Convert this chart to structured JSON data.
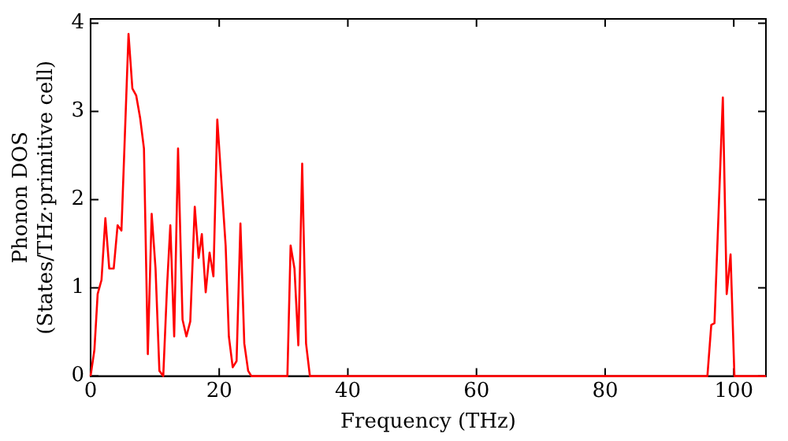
{
  "chart_data": {
    "type": "line",
    "xlabel": "Frequency (THz)",
    "ylabel": "Phonon DOS\n(States/THz·primitive cell)",
    "xlim": [
      0,
      105
    ],
    "ylim": [
      0,
      4.05
    ],
    "xticks": [
      0,
      20,
      40,
      60,
      80,
      100
    ],
    "yticks": [
      0,
      1,
      2,
      3,
      4
    ],
    "grid": false,
    "legend": false,
    "marker": "none",
    "line_style": "solid",
    "series": [
      {
        "color": "#ff0000",
        "x": [
          0,
          0.6,
          1.1,
          1.7,
          2.3,
          2.9,
          3.6,
          4.2,
          4.8,
          5.9,
          6.5,
          7.1,
          7.7,
          8.3,
          8.9,
          9.5,
          10.1,
          10.7,
          11.3,
          11.9,
          12.4,
          13.0,
          13.6,
          14.3,
          14.9,
          15.5,
          16.2,
          16.8,
          17.3,
          17.9,
          18.5,
          19.1,
          19.7,
          20.3,
          21.0,
          21.5,
          22.1,
          22.7,
          23.3,
          23.9,
          24.5,
          25.0,
          30.6,
          31.1,
          31.7,
          32.3,
          32.9,
          33.5,
          34.1,
          95.9,
          96.5,
          97.0,
          98.3,
          98.9,
          99.5,
          100.1,
          105
        ],
        "values": [
          0,
          0.3,
          0.93,
          1.09,
          1.79,
          1.22,
          1.22,
          1.71,
          1.65,
          3.88,
          3.26,
          3.18,
          2.93,
          2.58,
          0.25,
          1.84,
          1.22,
          0.06,
          0,
          1.03,
          1.71,
          0.45,
          2.58,
          0.64,
          0.45,
          0.62,
          1.92,
          1.34,
          1.61,
          0.95,
          1.4,
          1.13,
          2.91,
          2.25,
          1.48,
          0.45,
          0.1,
          0.17,
          1.73,
          0.37,
          0.06,
          0,
          0,
          1.48,
          1.22,
          0.35,
          2.41,
          0.37,
          0,
          0,
          0.58,
          0.6,
          3.16,
          0.93,
          1.38,
          0,
          0
        ]
      }
    ]
  }
}
